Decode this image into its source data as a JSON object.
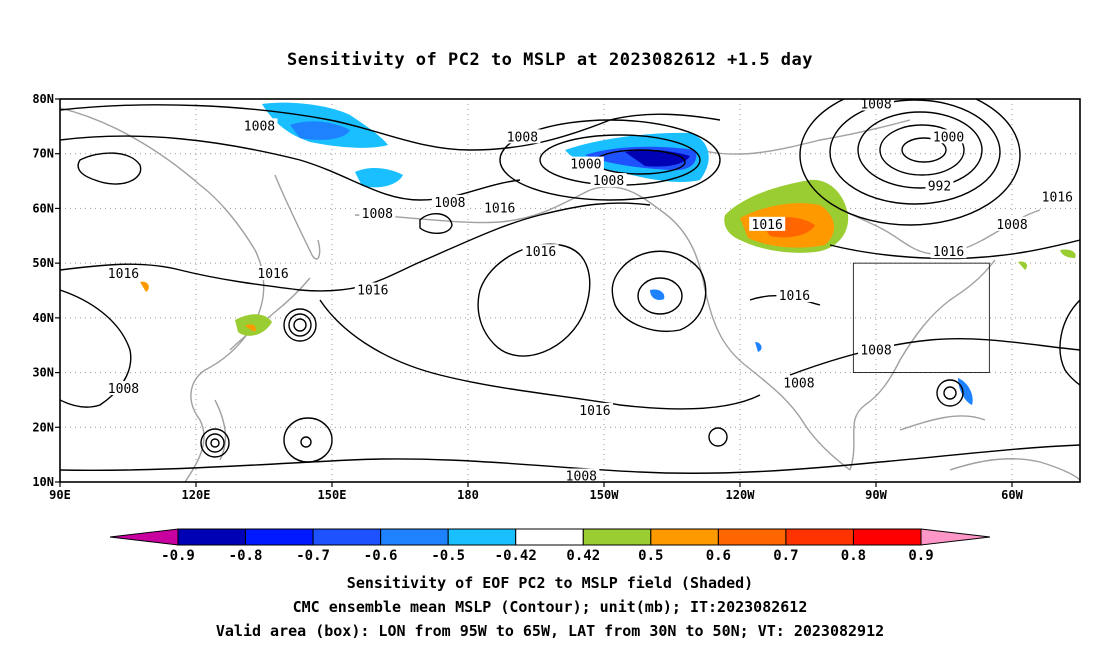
{
  "title": "Sensitivity of PC2 to MSLP at 2023082612 +1.5 day",
  "map": {
    "lon_ticks": [
      "90E",
      "120E",
      "150E",
      "180",
      "150W",
      "120W",
      "90W",
      "60W"
    ],
    "lat_ticks": [
      "80N",
      "70N",
      "60N",
      "50N",
      "40N",
      "30N",
      "20N",
      "10N"
    ],
    "lon_range": [
      90,
      315
    ],
    "lat_range": [
      10,
      80
    ],
    "grid": "dotted",
    "valid_box": {
      "lon": [
        265,
        295
      ],
      "lat": [
        30,
        50
      ]
    },
    "contour_labels": [
      {
        "text": "1008",
        "lon": 134,
        "lat": 75
      },
      {
        "text": "1008",
        "lon": 192,
        "lat": 73
      },
      {
        "text": "1000",
        "lon": 206,
        "lat": 68
      },
      {
        "text": "1008",
        "lon": 211,
        "lat": 65
      },
      {
        "text": "1008",
        "lon": 160,
        "lat": 59
      },
      {
        "text": "1008",
        "lon": 176,
        "lat": 61
      },
      {
        "text": "1016",
        "lon": 187,
        "lat": 60
      },
      {
        "text": "1016",
        "lon": 196,
        "lat": 52
      },
      {
        "text": "1016",
        "lon": 246,
        "lat": 57
      },
      {
        "text": "1008",
        "lon": 270,
        "lat": 79
      },
      {
        "text": "1000",
        "lon": 286,
        "lat": 73
      },
      {
        "text": "992",
        "lon": 284,
        "lat": 64
      },
      {
        "text": "1016",
        "lon": 310,
        "lat": 62
      },
      {
        "text": "1008",
        "lon": 300,
        "lat": 57
      },
      {
        "text": "1016",
        "lon": 286,
        "lat": 52
      },
      {
        "text": "1016",
        "lon": 104,
        "lat": 48
      },
      {
        "text": "1016",
        "lon": 137,
        "lat": 48
      },
      {
        "text": "1016",
        "lon": 159,
        "lat": 45
      },
      {
        "text": "1016",
        "lon": 252,
        "lat": 44
      },
      {
        "text": "1008",
        "lon": 270,
        "lat": 34
      },
      {
        "text": "1008",
        "lon": 253,
        "lat": 28
      },
      {
        "text": "1008",
        "lon": 104,
        "lat": 27
      },
      {
        "text": "1016",
        "lon": 208,
        "lat": 23
      },
      {
        "text": "1008",
        "lon": 205,
        "lat": 11
      }
    ]
  },
  "colorbar": {
    "labels": [
      "-0.9",
      "-0.8",
      "-0.7",
      "-0.6",
      "-0.5",
      "-0.42",
      "0.42",
      "0.5",
      "0.6",
      "0.7",
      "0.8",
      "0.9"
    ],
    "colors": [
      "#0000b4",
      "#0019ff",
      "#1f52ff",
      "#1e82ff",
      "#19bfff",
      "#ffffff",
      "#9acd32",
      "#ff9900",
      "#ff6600",
      "#ff3300",
      "#ff0000"
    ],
    "low_extend_color": "#c800a0",
    "high_extend_color": "#ff96c8"
  },
  "captions": {
    "line1": "Sensitivity of EOF PC2 to MSLP field (Shaded)",
    "line2": "CMC ensemble mean MSLP (Contour); unit(mb); IT:2023082612",
    "line3": "Valid area (box): LON from 95W to 65W, LAT from 30N to 50N; VT: 2023082912"
  }
}
